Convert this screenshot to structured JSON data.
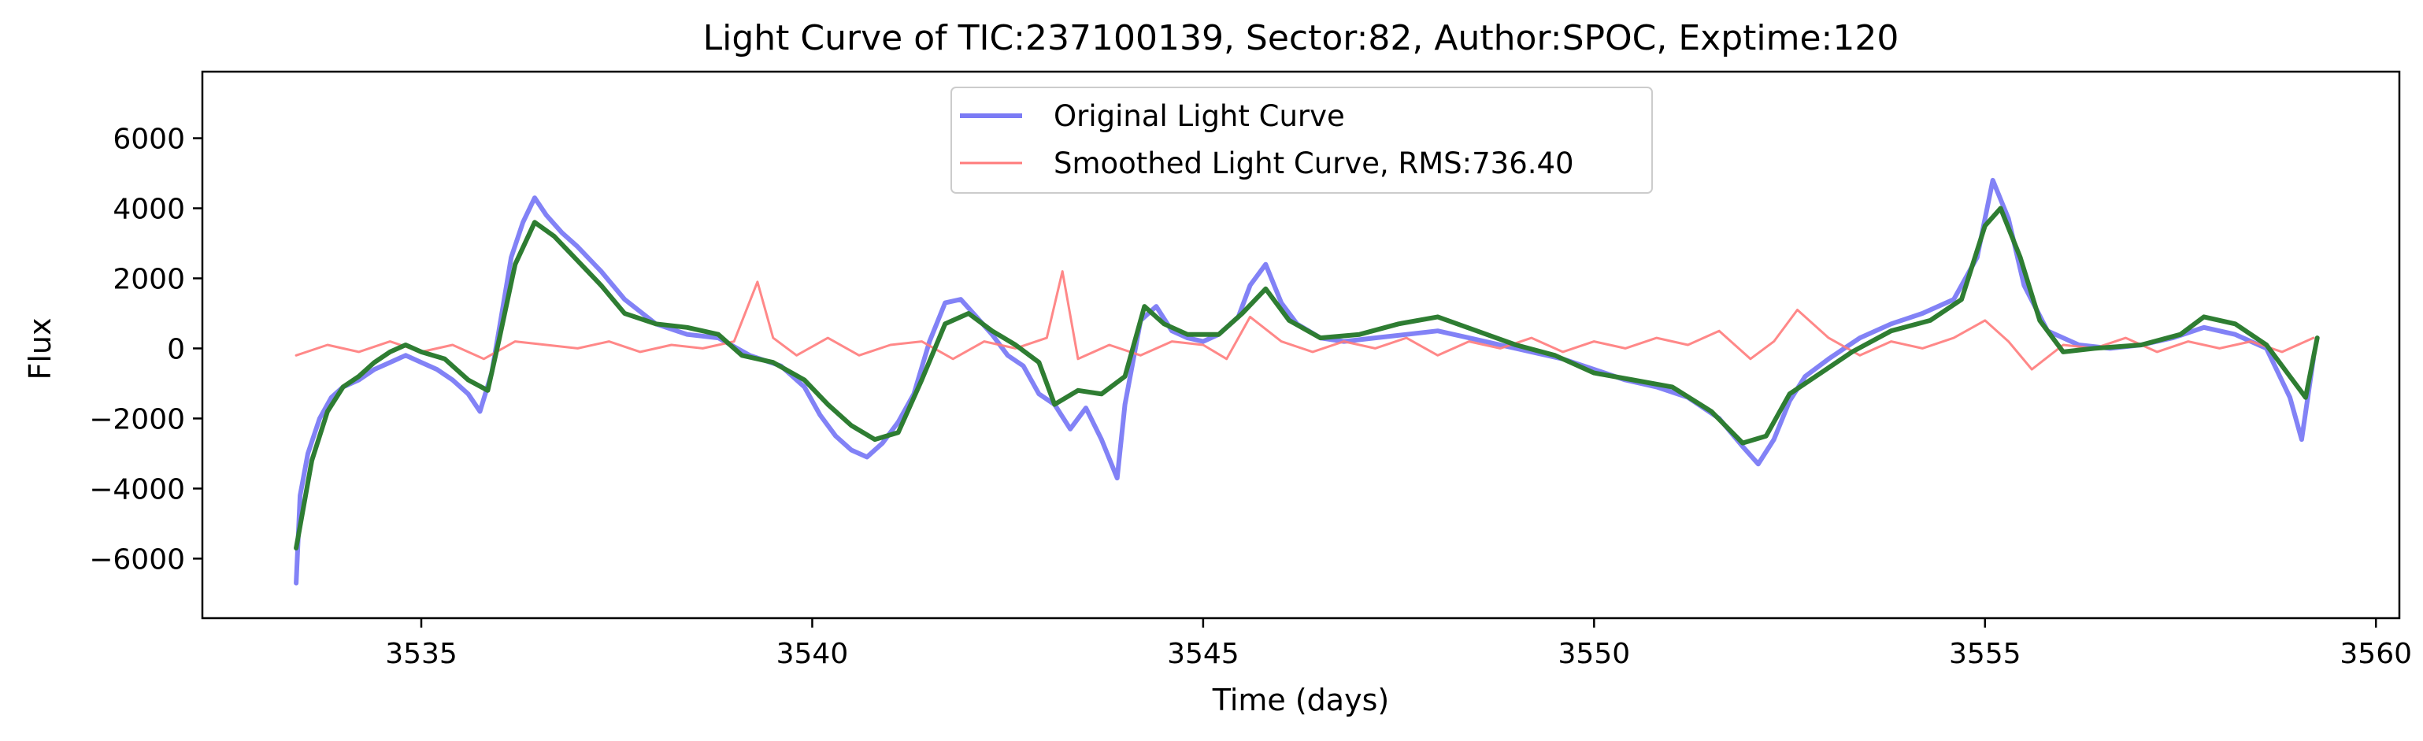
{
  "chart_data": {
    "type": "line",
    "title": "Light Curve of TIC:237100139, Sector:82, Author:SPOC, Exptime:120",
    "xlabel": "Time (days)",
    "ylabel": "Flux",
    "xlim": [
      3532.2,
      3560.3
    ],
    "ylim": [
      -7700,
      7900
    ],
    "xticks": [
      3535,
      3540,
      3545,
      3550,
      3555,
      3560
    ],
    "yticks": [
      -6000,
      -4000,
      -2000,
      0,
      2000,
      4000,
      6000
    ],
    "grid": false,
    "legend_position": "top-center",
    "series": [
      {
        "name": "Original Light Curve",
        "color": "#7b7bf5",
        "points": [
          [
            3533.4,
            -6700
          ],
          [
            3533.45,
            -4200
          ],
          [
            3533.55,
            -3000
          ],
          [
            3533.7,
            -2000
          ],
          [
            3533.85,
            -1400
          ],
          [
            3534.0,
            -1100
          ],
          [
            3534.2,
            -900
          ],
          [
            3534.4,
            -600
          ],
          [
            3534.6,
            -400
          ],
          [
            3534.8,
            -200
          ],
          [
            3535.0,
            -400
          ],
          [
            3535.2,
            -600
          ],
          [
            3535.4,
            -900
          ],
          [
            3535.6,
            -1300
          ],
          [
            3535.75,
            -1800
          ],
          [
            3535.9,
            -700
          ],
          [
            3536.0,
            600
          ],
          [
            3536.15,
            2600
          ],
          [
            3536.3,
            3600
          ],
          [
            3536.45,
            4300
          ],
          [
            3536.6,
            3800
          ],
          [
            3536.8,
            3300
          ],
          [
            3537.0,
            2900
          ],
          [
            3537.3,
            2200
          ],
          [
            3537.6,
            1400
          ],
          [
            3538.0,
            700
          ],
          [
            3538.4,
            400
          ],
          [
            3538.8,
            300
          ],
          [
            3539.2,
            -200
          ],
          [
            3539.6,
            -500
          ],
          [
            3539.9,
            -1100
          ],
          [
            3540.1,
            -1900
          ],
          [
            3540.3,
            -2500
          ],
          [
            3540.5,
            -2900
          ],
          [
            3540.7,
            -3100
          ],
          [
            3540.9,
            -2700
          ],
          [
            3541.1,
            -2100
          ],
          [
            3541.3,
            -1300
          ],
          [
            3541.5,
            200
          ],
          [
            3541.7,
            1300
          ],
          [
            3541.9,
            1400
          ],
          [
            3542.1,
            900
          ],
          [
            3542.3,
            400
          ],
          [
            3542.5,
            -200
          ],
          [
            3542.7,
            -500
          ],
          [
            3542.9,
            -1300
          ],
          [
            3543.1,
            -1600
          ],
          [
            3543.3,
            -2300
          ],
          [
            3543.5,
            -1700
          ],
          [
            3543.7,
            -2600
          ],
          [
            3543.9,
            -3700
          ],
          [
            3544.0,
            -1600
          ],
          [
            3544.2,
            800
          ],
          [
            3544.4,
            1200
          ],
          [
            3544.6,
            500
          ],
          [
            3544.8,
            300
          ],
          [
            3545.0,
            200
          ],
          [
            3545.2,
            400
          ],
          [
            3545.45,
            900
          ],
          [
            3545.6,
            1800
          ],
          [
            3545.8,
            2400
          ],
          [
            3546.0,
            1300
          ],
          [
            3546.2,
            700
          ],
          [
            3546.5,
            300
          ],
          [
            3546.8,
            200
          ],
          [
            3547.2,
            300
          ],
          [
            3547.6,
            400
          ],
          [
            3548.0,
            500
          ],
          [
            3548.4,
            300
          ],
          [
            3548.8,
            100
          ],
          [
            3549.2,
            -100
          ],
          [
            3549.6,
            -300
          ],
          [
            3550.0,
            -600
          ],
          [
            3550.4,
            -900
          ],
          [
            3550.8,
            -1100
          ],
          [
            3551.2,
            -1400
          ],
          [
            3551.6,
            -2000
          ],
          [
            3551.9,
            -2800
          ],
          [
            3552.1,
            -3300
          ],
          [
            3552.3,
            -2600
          ],
          [
            3552.5,
            -1500
          ],
          [
            3552.7,
            -800
          ],
          [
            3553.0,
            -300
          ],
          [
            3553.4,
            300
          ],
          [
            3553.8,
            700
          ],
          [
            3554.2,
            1000
          ],
          [
            3554.6,
            1400
          ],
          [
            3554.9,
            2600
          ],
          [
            3555.1,
            4800
          ],
          [
            3555.3,
            3700
          ],
          [
            3555.5,
            1800
          ],
          [
            3555.8,
            500
          ],
          [
            3556.2,
            100
          ],
          [
            3556.6,
            0
          ],
          [
            3557.0,
            100
          ],
          [
            3557.4,
            300
          ],
          [
            3557.8,
            600
          ],
          [
            3558.2,
            400
          ],
          [
            3558.6,
            0
          ],
          [
            3558.9,
            -1400
          ],
          [
            3559.05,
            -2600
          ],
          [
            3559.2,
            -300
          ]
        ]
      },
      {
        "name": "Smoothed Light Curve, RMS:736.40",
        "color": "#ff7b7b",
        "points": [
          [
            3533.4,
            -200
          ],
          [
            3533.8,
            100
          ],
          [
            3534.2,
            -100
          ],
          [
            3534.6,
            200
          ],
          [
            3535.0,
            -100
          ],
          [
            3535.4,
            100
          ],
          [
            3535.8,
            -300
          ],
          [
            3536.2,
            200
          ],
          [
            3536.6,
            100
          ],
          [
            3537.0,
            0
          ],
          [
            3537.4,
            200
          ],
          [
            3537.8,
            -100
          ],
          [
            3538.2,
            100
          ],
          [
            3538.6,
            0
          ],
          [
            3539.0,
            200
          ],
          [
            3539.3,
            1900
          ],
          [
            3539.5,
            300
          ],
          [
            3539.8,
            -200
          ],
          [
            3540.2,
            300
          ],
          [
            3540.6,
            -200
          ],
          [
            3541.0,
            100
          ],
          [
            3541.4,
            200
          ],
          [
            3541.8,
            -300
          ],
          [
            3542.2,
            200
          ],
          [
            3542.6,
            0
          ],
          [
            3543.0,
            300
          ],
          [
            3543.2,
            2200
          ],
          [
            3543.4,
            -300
          ],
          [
            3543.8,
            100
          ],
          [
            3544.2,
            -200
          ],
          [
            3544.6,
            200
          ],
          [
            3545.0,
            100
          ],
          [
            3545.3,
            -300
          ],
          [
            3545.6,
            900
          ],
          [
            3546.0,
            200
          ],
          [
            3546.4,
            -100
          ],
          [
            3546.8,
            200
          ],
          [
            3547.2,
            0
          ],
          [
            3547.6,
            300
          ],
          [
            3548.0,
            -200
          ],
          [
            3548.4,
            200
          ],
          [
            3548.8,
            0
          ],
          [
            3549.2,
            300
          ],
          [
            3549.6,
            -100
          ],
          [
            3550.0,
            200
          ],
          [
            3550.4,
            0
          ],
          [
            3550.8,
            300
          ],
          [
            3551.2,
            100
          ],
          [
            3551.6,
            500
          ],
          [
            3552.0,
            -300
          ],
          [
            3552.3,
            200
          ],
          [
            3552.6,
            1100
          ],
          [
            3553.0,
            300
          ],
          [
            3553.4,
            -200
          ],
          [
            3553.8,
            200
          ],
          [
            3554.2,
            0
          ],
          [
            3554.6,
            300
          ],
          [
            3555.0,
            800
          ],
          [
            3555.3,
            200
          ],
          [
            3555.6,
            -600
          ],
          [
            3556.0,
            100
          ],
          [
            3556.4,
            0
          ],
          [
            3556.8,
            300
          ],
          [
            3557.2,
            -100
          ],
          [
            3557.6,
            200
          ],
          [
            3558.0,
            0
          ],
          [
            3558.4,
            200
          ],
          [
            3558.8,
            -100
          ],
          [
            3559.2,
            300
          ]
        ]
      },
      {
        "color": "#2e7d32",
        "points": [
          [
            3533.4,
            -5700
          ],
          [
            3533.6,
            -3200
          ],
          [
            3533.8,
            -1800
          ],
          [
            3534.0,
            -1100
          ],
          [
            3534.2,
            -800
          ],
          [
            3534.4,
            -400
          ],
          [
            3534.6,
            -100
          ],
          [
            3534.8,
            100
          ],
          [
            3535.0,
            -100
          ],
          [
            3535.3,
            -300
          ],
          [
            3535.6,
            -900
          ],
          [
            3535.85,
            -1200
          ],
          [
            3536.0,
            300
          ],
          [
            3536.2,
            2400
          ],
          [
            3536.45,
            3600
          ],
          [
            3536.7,
            3200
          ],
          [
            3537.0,
            2500
          ],
          [
            3537.3,
            1800
          ],
          [
            3537.6,
            1000
          ],
          [
            3538.0,
            700
          ],
          [
            3538.4,
            600
          ],
          [
            3538.8,
            400
          ],
          [
            3539.1,
            -200
          ],
          [
            3539.5,
            -400
          ],
          [
            3539.9,
            -900
          ],
          [
            3540.2,
            -1600
          ],
          [
            3540.5,
            -2200
          ],
          [
            3540.8,
            -2600
          ],
          [
            3541.1,
            -2400
          ],
          [
            3541.4,
            -900
          ],
          [
            3541.7,
            700
          ],
          [
            3542.0,
            1000
          ],
          [
            3542.3,
            500
          ],
          [
            3542.6,
            100
          ],
          [
            3542.9,
            -400
          ],
          [
            3543.1,
            -1600
          ],
          [
            3543.4,
            -1200
          ],
          [
            3543.7,
            -1300
          ],
          [
            3544.0,
            -800
          ],
          [
            3544.25,
            1200
          ],
          [
            3544.5,
            700
          ],
          [
            3544.8,
            400
          ],
          [
            3545.2,
            400
          ],
          [
            3545.5,
            1000
          ],
          [
            3545.8,
            1700
          ],
          [
            3546.1,
            800
          ],
          [
            3546.5,
            300
          ],
          [
            3547.0,
            400
          ],
          [
            3547.5,
            700
          ],
          [
            3548.0,
            900
          ],
          [
            3548.5,
            500
          ],
          [
            3549.0,
            100
          ],
          [
            3549.5,
            -200
          ],
          [
            3550.0,
            -700
          ],
          [
            3550.5,
            -900
          ],
          [
            3551.0,
            -1100
          ],
          [
            3551.5,
            -1800
          ],
          [
            3551.9,
            -2700
          ],
          [
            3552.2,
            -2500
          ],
          [
            3552.5,
            -1300
          ],
          [
            3552.9,
            -700
          ],
          [
            3553.3,
            -100
          ],
          [
            3553.8,
            500
          ],
          [
            3554.3,
            800
          ],
          [
            3554.7,
            1400
          ],
          [
            3555.0,
            3500
          ],
          [
            3555.2,
            4000
          ],
          [
            3555.45,
            2600
          ],
          [
            3555.7,
            800
          ],
          [
            3556.0,
            -100
          ],
          [
            3556.4,
            0
          ],
          [
            3557.0,
            100
          ],
          [
            3557.5,
            400
          ],
          [
            3557.8,
            900
          ],
          [
            3558.2,
            700
          ],
          [
            3558.6,
            100
          ],
          [
            3558.9,
            -800
          ],
          [
            3559.1,
            -1400
          ],
          [
            3559.25,
            300
          ]
        ]
      }
    ]
  }
}
